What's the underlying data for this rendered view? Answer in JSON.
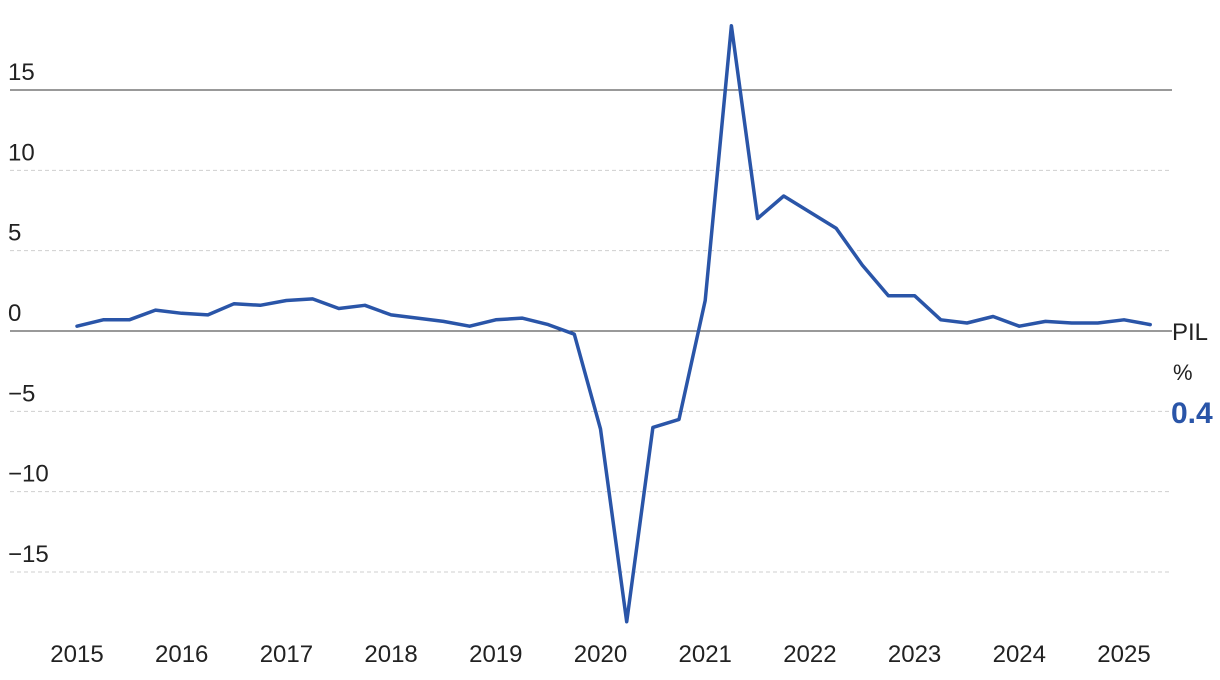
{
  "colors": {
    "series": "#2a55a8",
    "zero_line": "#333333",
    "grid": "#cfcfcf",
    "text": "#222222"
  },
  "chart_data": {
    "type": "line",
    "title": "",
    "xlabel": "",
    "ylabel": "",
    "ylim": [
      -18,
      19
    ],
    "yticks": [
      15,
      10,
      5,
      0,
      -5,
      -10,
      -15
    ],
    "ytick_labels": [
      "15",
      "10",
      "5",
      "0",
      "−5",
      "−10",
      "−15"
    ],
    "xlim": [
      2015,
      2025.35
    ],
    "xticks": [
      2015,
      2016,
      2017,
      2018,
      2019,
      2020,
      2021,
      2022,
      2023,
      2024,
      2025
    ],
    "xtick_labels": [
      "2015",
      "2016",
      "2017",
      "2018",
      "2019",
      "2020",
      "2021",
      "2022",
      "2023",
      "2024",
      "2025"
    ],
    "grid": true,
    "series": [
      {
        "name": "PIL",
        "unit": "%",
        "last_value_label": "0.4",
        "x": [
          2015.0,
          2015.25,
          2015.5,
          2015.75,
          2016.0,
          2016.25,
          2016.5,
          2016.75,
          2017.0,
          2017.25,
          2017.5,
          2017.75,
          2018.0,
          2018.25,
          2018.5,
          2018.75,
          2019.0,
          2019.25,
          2019.5,
          2019.75,
          2020.0,
          2020.25,
          2020.5,
          2020.75,
          2021.0,
          2021.25,
          2021.5,
          2021.75,
          2022.0,
          2022.25,
          2022.5,
          2022.75,
          2023.0,
          2023.25,
          2023.5,
          2023.75,
          2024.0,
          2024.25,
          2024.5,
          2024.75,
          2025.0,
          2025.25
        ],
        "values": [
          0.3,
          0.7,
          0.7,
          1.3,
          1.1,
          1.0,
          1.7,
          1.6,
          1.9,
          2.0,
          1.4,
          1.6,
          1.0,
          0.8,
          0.6,
          0.3,
          0.7,
          0.8,
          0.4,
          -0.2,
          -6.1,
          -18.1,
          -6.0,
          -5.5,
          1.9,
          19.0,
          7.0,
          8.4,
          7.4,
          6.4,
          4.1,
          2.2,
          2.2,
          0.7,
          0.5,
          0.9,
          0.3,
          0.6,
          0.5,
          0.5,
          0.7,
          0.4
        ]
      }
    ]
  }
}
